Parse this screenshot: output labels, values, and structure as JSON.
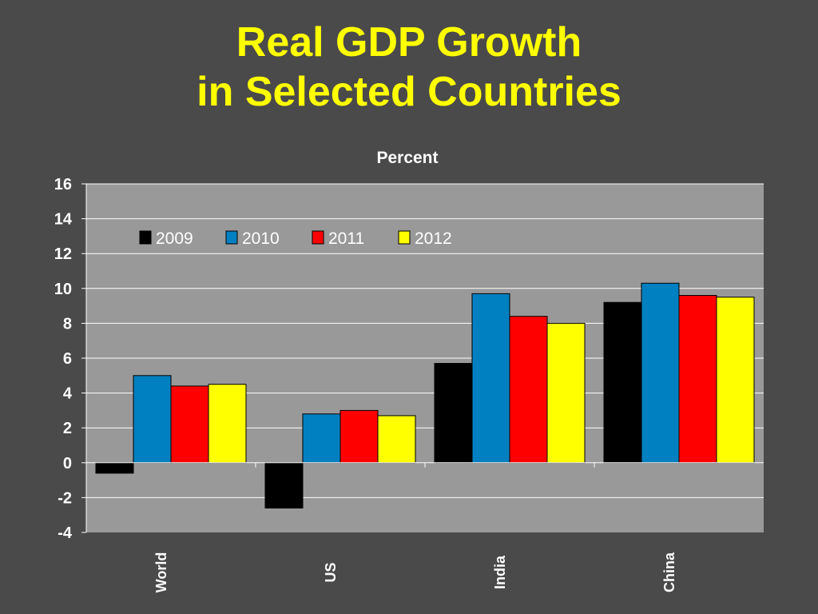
{
  "slide": {
    "title_line1": "Real GDP Growth",
    "title_line2": "in Selected Countries"
  },
  "colors": {
    "background": "#4a4a4a",
    "plot_area": "#999999",
    "title": "#ffff00",
    "text": "#ffffff",
    "gridline": "#ffffff"
  },
  "chart_data": {
    "type": "bar",
    "title": "Real GDP Growth in Selected Countries",
    "ylabel": "Percent",
    "xlabel": "",
    "categories": [
      "World",
      "US",
      "India",
      "China"
    ],
    "series": [
      {
        "name": "2009",
        "color": "#000000",
        "values": [
          -0.6,
          -2.6,
          5.7,
          9.2
        ]
      },
      {
        "name": "2010",
        "color": "#0080c0",
        "values": [
          5.0,
          2.8,
          9.7,
          10.3
        ]
      },
      {
        "name": "2011",
        "color": "#ff0000",
        "values": [
          4.4,
          3.0,
          8.4,
          9.6
        ]
      },
      {
        "name": "2012",
        "color": "#ffff00",
        "values": [
          4.5,
          2.7,
          8.0,
          9.5
        ]
      }
    ],
    "ylim": [
      -4,
      16
    ],
    "yticks": [
      -4,
      -2,
      0,
      2,
      4,
      6,
      8,
      10,
      12,
      14,
      16
    ],
    "grid": true,
    "legend_position": "top-left"
  }
}
